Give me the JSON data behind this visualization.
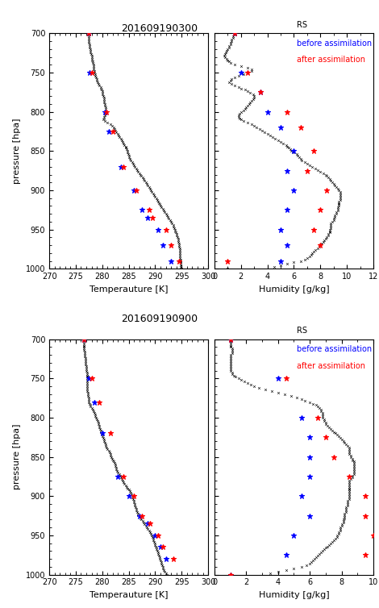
{
  "title1": "201609190300",
  "title2": "201609190900",
  "legend_rs": "RS",
  "legend_before": "before assimilation",
  "legend_after": "after assimilation",
  "ylabel": "pressure [hpa]",
  "xlabel_temp": "Temperauture [K]",
  "xlabel_hum": "Humidity [g/kg]",
  "temp_xlim": [
    270,
    300
  ],
  "hum_xlim1": [
    0,
    12
  ],
  "hum_xlim2": [
    0,
    10
  ],
  "temp_xticks": [
    270,
    275,
    280,
    285,
    290,
    295,
    300
  ],
  "hum_xticks1": [
    0,
    2,
    4,
    6,
    8,
    10,
    12
  ],
  "hum_xticks2": [
    0,
    2,
    4,
    6,
    8,
    10
  ],
  "pressure_yticks": [
    700,
    750,
    800,
    850,
    900,
    950,
    1000
  ],
  "rs_temp1_p": [
    700,
    702,
    704,
    706,
    708,
    710,
    712,
    714,
    716,
    718,
    720,
    722,
    724,
    726,
    728,
    730,
    732,
    734,
    736,
    738,
    740,
    742,
    744,
    746,
    748,
    750,
    752,
    754,
    756,
    758,
    760,
    762,
    764,
    766,
    768,
    770,
    772,
    774,
    776,
    778,
    780,
    782,
    784,
    786,
    788,
    790,
    792,
    794,
    796,
    798,
    800,
    802,
    804,
    806,
    808,
    810,
    812,
    814,
    816,
    818,
    820,
    822,
    824,
    826,
    828,
    830,
    832,
    834,
    836,
    838,
    840,
    842,
    844,
    846,
    848,
    850,
    852,
    854,
    856,
    858,
    860,
    862,
    864,
    866,
    868,
    870,
    872,
    874,
    876,
    878,
    880,
    882,
    884,
    886,
    888,
    890,
    892,
    894,
    896,
    898,
    900,
    902,
    904,
    906,
    908,
    910,
    912,
    914,
    916,
    918,
    920,
    922,
    924,
    926,
    928,
    930,
    932,
    934,
    936,
    938,
    940,
    942,
    944,
    946,
    948,
    950,
    952,
    954,
    956,
    958,
    960,
    962,
    964,
    966,
    968,
    970,
    972,
    974,
    976,
    978,
    980,
    982,
    984,
    986,
    988,
    990,
    992,
    994,
    996,
    998,
    1000
  ],
  "rs_temp1_t": [
    277.5,
    277.5,
    277.5,
    277.5,
    277.5,
    277.5,
    277.5,
    277.6,
    277.6,
    277.6,
    277.7,
    277.7,
    277.8,
    277.9,
    278.0,
    278.0,
    278.1,
    278.1,
    278.2,
    278.2,
    278.3,
    278.3,
    278.3,
    278.4,
    278.5,
    278.5,
    278.6,
    278.7,
    278.8,
    278.9,
    279.0,
    279.1,
    279.3,
    279.5,
    279.7,
    279.8,
    279.9,
    280.0,
    280.0,
    280.1,
    280.2,
    280.3,
    280.3,
    280.4,
    280.4,
    280.5,
    280.5,
    280.6,
    280.7,
    280.7,
    280.7,
    280.6,
    280.5,
    280.4,
    280.3,
    280.2,
    280.5,
    281.0,
    281.5,
    281.8,
    282.1,
    282.3,
    282.5,
    282.7,
    282.9,
    283.1,
    283.3,
    283.5,
    283.7,
    283.9,
    284.0,
    284.2,
    284.4,
    284.5,
    284.6,
    284.7,
    284.8,
    284.9,
    285.0,
    285.1,
    285.2,
    285.4,
    285.6,
    285.8,
    286.0,
    286.2,
    286.4,
    286.6,
    286.8,
    287.0,
    287.2,
    287.4,
    287.6,
    287.8,
    288.0,
    288.2,
    288.4,
    288.6,
    288.8,
    289.0,
    289.2,
    289.4,
    289.6,
    289.8,
    290.0,
    290.2,
    290.4,
    290.5,
    290.7,
    290.8,
    291.0,
    291.2,
    291.4,
    291.6,
    291.8,
    292.0,
    292.2,
    292.4,
    292.6,
    292.8,
    293.0,
    293.2,
    293.4,
    293.5,
    293.6,
    293.7,
    293.8,
    293.9,
    294.0,
    294.1,
    294.2,
    294.3,
    294.4,
    294.4,
    294.5,
    294.5,
    294.5,
    294.6,
    294.6,
    294.6,
    294.7,
    294.7,
    294.7,
    294.7,
    294.8,
    294.8,
    294.8,
    294.8,
    294.8,
    294.8,
    295.0
  ],
  "rs_hum1_p": [
    700,
    702,
    704,
    706,
    708,
    710,
    712,
    714,
    716,
    718,
    720,
    722,
    724,
    726,
    728,
    730,
    732,
    734,
    736,
    738,
    740,
    742,
    744,
    746,
    748,
    750,
    752,
    754,
    756,
    758,
    760,
    762,
    764,
    766,
    768,
    770,
    772,
    774,
    776,
    778,
    780,
    782,
    784,
    786,
    788,
    790,
    792,
    794,
    796,
    798,
    800,
    802,
    804,
    806,
    808,
    810,
    812,
    814,
    816,
    818,
    820,
    822,
    824,
    826,
    828,
    830,
    832,
    834,
    836,
    838,
    840,
    842,
    844,
    846,
    848,
    850,
    852,
    854,
    856,
    858,
    860,
    862,
    864,
    866,
    868,
    870,
    872,
    874,
    876,
    878,
    880,
    882,
    884,
    886,
    888,
    890,
    892,
    894,
    896,
    898,
    900,
    902,
    904,
    906,
    908,
    910,
    912,
    914,
    916,
    918,
    920,
    922,
    924,
    926,
    928,
    930,
    932,
    934,
    936,
    938,
    940,
    942,
    944,
    946,
    948,
    950,
    952,
    954,
    956,
    958,
    960,
    962,
    964,
    966,
    968,
    970,
    972,
    974,
    976,
    978,
    980,
    982,
    984,
    986,
    988,
    990,
    992,
    994,
    996,
    998,
    1000
  ],
  "rs_hum1_h": [
    1.5,
    1.5,
    1.4,
    1.4,
    1.3,
    1.3,
    1.2,
    1.2,
    1.1,
    1.1,
    1.0,
    0.9,
    0.85,
    0.8,
    0.75,
    0.8,
    0.9,
    1.0,
    1.1,
    1.2,
    1.5,
    2.0,
    2.5,
    2.8,
    2.8,
    2.5,
    2.2,
    1.8,
    1.5,
    1.3,
    1.2,
    1.1,
    1.3,
    1.5,
    1.8,
    2.0,
    2.3,
    2.5,
    2.7,
    2.9,
    3.0,
    3.0,
    2.9,
    2.8,
    2.7,
    2.6,
    2.5,
    2.4,
    2.3,
    2.2,
    2.0,
    1.9,
    1.8,
    1.8,
    1.9,
    2.0,
    2.2,
    2.5,
    2.8,
    3.0,
    3.2,
    3.4,
    3.6,
    3.8,
    4.0,
    4.2,
    4.4,
    4.6,
    4.8,
    5.0,
    5.2,
    5.4,
    5.5,
    5.6,
    5.7,
    5.8,
    6.0,
    6.2,
    6.3,
    6.4,
    6.5,
    6.6,
    6.8,
    7.0,
    7.2,
    7.4,
    7.6,
    7.8,
    8.0,
    8.2,
    8.4,
    8.5,
    8.6,
    8.7,
    8.8,
    8.9,
    9.0,
    9.1,
    9.2,
    9.3,
    9.4,
    9.5,
    9.5,
    9.5,
    9.5,
    9.5,
    9.5,
    9.4,
    9.4,
    9.4,
    9.4,
    9.3,
    9.3,
    9.3,
    9.2,
    9.2,
    9.1,
    9.1,
    9.0,
    9.0,
    8.9,
    8.8,
    8.8,
    8.8,
    8.8,
    8.7,
    8.7,
    8.7,
    8.6,
    8.6,
    8.5,
    8.4,
    8.3,
    8.2,
    8.1,
    8.0,
    7.9,
    7.8,
    7.6,
    7.5,
    7.4,
    7.3,
    7.2,
    7.0,
    6.8,
    6.5,
    6.0,
    5.5,
    5.0,
    4.5,
    1.0
  ],
  "before_temp1": [
    277.5,
    277.6,
    280.5,
    281.2,
    283.5,
    286.0,
    287.5,
    288.5,
    290.5,
    291.5,
    293.0
  ],
  "before_temp1_p": [
    700,
    750,
    800,
    825,
    870,
    900,
    925,
    935,
    950,
    970,
    990
  ],
  "after_temp1": [
    277.5,
    278.0,
    280.8,
    282.0,
    284.0,
    286.5,
    288.8,
    289.5,
    292.0,
    293.0,
    294.5
  ],
  "after_temp1_p": [
    700,
    750,
    800,
    825,
    870,
    900,
    925,
    935,
    950,
    970,
    990
  ],
  "before_hum1": [
    1.5,
    2.0,
    3.5,
    4.0,
    5.0,
    6.0,
    5.5,
    6.0,
    5.5,
    5.0,
    5.5,
    5.0
  ],
  "before_hum1_p": [
    700,
    750,
    775,
    800,
    820,
    850,
    875,
    900,
    925,
    950,
    970,
    990
  ],
  "after_hum1": [
    1.5,
    2.5,
    3.5,
    5.5,
    6.5,
    7.5,
    7.0,
    8.5,
    8.0,
    7.5,
    8.0,
    1.0
  ],
  "after_hum1_p": [
    700,
    750,
    775,
    800,
    820,
    850,
    875,
    900,
    925,
    950,
    970,
    990
  ],
  "rs_temp2_p": [
    700,
    702,
    704,
    706,
    708,
    710,
    712,
    714,
    716,
    718,
    720,
    722,
    724,
    726,
    728,
    730,
    732,
    734,
    736,
    738,
    740,
    742,
    744,
    746,
    748,
    750,
    752,
    754,
    756,
    758,
    760,
    762,
    764,
    766,
    768,
    770,
    772,
    774,
    776,
    778,
    780,
    782,
    784,
    786,
    788,
    790,
    792,
    794,
    796,
    798,
    800,
    802,
    804,
    806,
    808,
    810,
    812,
    814,
    816,
    818,
    820,
    822,
    824,
    826,
    828,
    830,
    832,
    834,
    836,
    838,
    840,
    842,
    844,
    846,
    848,
    850,
    852,
    854,
    856,
    858,
    860,
    862,
    864,
    866,
    868,
    870,
    872,
    874,
    876,
    878,
    880,
    882,
    884,
    886,
    888,
    890,
    892,
    894,
    896,
    898,
    900,
    902,
    904,
    906,
    908,
    910,
    912,
    914,
    916,
    918,
    920,
    922,
    924,
    926,
    928,
    930,
    932,
    934,
    936,
    938,
    940,
    942,
    944,
    946,
    948,
    950,
    952,
    954,
    956,
    958,
    960,
    962,
    964,
    966,
    968,
    970,
    972,
    974,
    976,
    978,
    980,
    982,
    984,
    986,
    988,
    990,
    992,
    994,
    996,
    998,
    1000
  ],
  "rs_temp2_t": [
    276.5,
    276.5,
    276.5,
    276.5,
    276.5,
    276.6,
    276.6,
    276.6,
    276.7,
    276.7,
    276.7,
    276.7,
    276.8,
    276.8,
    276.8,
    276.9,
    276.9,
    277.0,
    277.0,
    277.0,
    277.0,
    277.1,
    277.1,
    277.1,
    277.1,
    277.1,
    277.1,
    277.2,
    277.2,
    277.2,
    277.2,
    277.2,
    277.2,
    277.2,
    277.3,
    277.3,
    277.3,
    277.4,
    277.4,
    277.5,
    277.5,
    277.6,
    277.7,
    277.8,
    278.0,
    278.2,
    278.4,
    278.5,
    278.6,
    278.7,
    278.8,
    279.0,
    279.1,
    279.2,
    279.3,
    279.4,
    279.5,
    279.6,
    279.7,
    279.8,
    279.9,
    280.0,
    280.1,
    280.2,
    280.3,
    280.4,
    280.5,
    280.6,
    280.7,
    280.8,
    281.0,
    281.2,
    281.4,
    281.5,
    281.6,
    281.7,
    281.8,
    282.0,
    282.2,
    282.3,
    282.4,
    282.5,
    282.6,
    282.7,
    282.8,
    283.0,
    283.2,
    283.4,
    283.5,
    283.7,
    283.9,
    284.0,
    284.2,
    284.4,
    284.6,
    284.8,
    285.0,
    285.2,
    285.4,
    285.5,
    285.6,
    285.7,
    285.8,
    285.9,
    286.0,
    286.1,
    286.2,
    286.3,
    286.4,
    286.5,
    286.6,
    286.7,
    286.8,
    287.0,
    287.2,
    287.4,
    287.6,
    287.8,
    288.0,
    288.2,
    288.4,
    288.6,
    288.8,
    289.0,
    289.2,
    289.4,
    289.5,
    289.6,
    289.7,
    289.8,
    289.9,
    290.0,
    290.1,
    290.2,
    290.3,
    290.4,
    290.5,
    290.6,
    290.7,
    290.8,
    290.9,
    291.0,
    291.1,
    291.2,
    291.3,
    291.4,
    291.5,
    291.6,
    291.8,
    292.0,
    292.2
  ],
  "rs_hum2_p": [
    700,
    702,
    704,
    706,
    708,
    710,
    712,
    714,
    716,
    718,
    720,
    722,
    724,
    726,
    728,
    730,
    732,
    734,
    736,
    738,
    740,
    742,
    744,
    746,
    748,
    750,
    752,
    754,
    756,
    758,
    760,
    762,
    764,
    766,
    768,
    770,
    772,
    774,
    776,
    778,
    780,
    782,
    784,
    786,
    788,
    790,
    792,
    794,
    796,
    798,
    800,
    802,
    804,
    806,
    808,
    810,
    812,
    814,
    816,
    818,
    820,
    822,
    824,
    826,
    828,
    830,
    832,
    834,
    836,
    838,
    840,
    842,
    844,
    846,
    848,
    850,
    852,
    854,
    856,
    858,
    860,
    862,
    864,
    866,
    868,
    870,
    872,
    874,
    876,
    878,
    880,
    882,
    884,
    886,
    888,
    890,
    892,
    894,
    896,
    898,
    900,
    902,
    904,
    906,
    908,
    910,
    912,
    914,
    916,
    918,
    920,
    922,
    924,
    926,
    928,
    930,
    932,
    934,
    936,
    938,
    940,
    942,
    944,
    946,
    948,
    950,
    952,
    954,
    956,
    958,
    960,
    962,
    964,
    966,
    968,
    970,
    972,
    974,
    976,
    978,
    980,
    982,
    984,
    986,
    988,
    990,
    992,
    994,
    996,
    998,
    1000
  ],
  "rs_hum2_h": [
    1.0,
    1.0,
    1.0,
    1.0,
    1.0,
    1.0,
    1.1,
    1.1,
    1.1,
    1.1,
    1.0,
    1.0,
    1.0,
    1.0,
    1.0,
    1.0,
    1.0,
    1.0,
    1.0,
    1.0,
    1.0,
    1.1,
    1.1,
    1.2,
    1.3,
    1.5,
    1.7,
    1.9,
    2.1,
    2.3,
    2.5,
    2.8,
    3.2,
    3.6,
    4.0,
    4.4,
    4.8,
    5.2,
    5.5,
    5.7,
    6.0,
    6.2,
    6.4,
    6.5,
    6.6,
    6.7,
    6.7,
    6.8,
    6.8,
    6.8,
    6.8,
    6.9,
    6.9,
    7.0,
    7.0,
    7.1,
    7.2,
    7.3,
    7.4,
    7.5,
    7.6,
    7.7,
    7.8,
    7.9,
    8.0,
    8.1,
    8.2,
    8.3,
    8.4,
    8.5,
    8.5,
    8.5,
    8.5,
    8.5,
    8.6,
    8.6,
    8.7,
    8.7,
    8.8,
    8.8,
    8.8,
    8.8,
    8.8,
    8.8,
    8.8,
    8.8,
    8.8,
    8.7,
    8.7,
    8.6,
    8.5,
    8.5,
    8.5,
    8.5,
    8.5,
    8.5,
    8.5,
    8.5,
    8.5,
    8.5,
    8.5,
    8.5,
    8.5,
    8.4,
    8.4,
    8.4,
    8.4,
    8.3,
    8.3,
    8.3,
    8.3,
    8.2,
    8.2,
    8.2,
    8.2,
    8.1,
    8.1,
    8.1,
    8.0,
    8.0,
    7.9,
    7.9,
    7.9,
    7.8,
    7.8,
    7.7,
    7.7,
    7.6,
    7.5,
    7.4,
    7.3,
    7.2,
    7.1,
    7.0,
    6.9,
    6.8,
    6.7,
    6.6,
    6.5,
    6.4,
    6.3,
    6.2,
    6.1,
    6.0,
    5.8,
    5.5,
    5.0,
    4.5,
    4.0,
    3.5,
    1.0
  ],
  "before_temp2": [
    276.5,
    277.5,
    278.5,
    280.0,
    283.0,
    285.0,
    287.0,
    288.5,
    290.0,
    291.0,
    292.0
  ],
  "before_temp2_p": [
    700,
    750,
    780,
    820,
    875,
    900,
    925,
    935,
    950,
    965,
    980
  ],
  "after_temp2": [
    276.5,
    278.0,
    279.5,
    281.5,
    284.0,
    286.0,
    287.5,
    289.0,
    290.5,
    291.5,
    293.5
  ],
  "after_temp2_p": [
    700,
    750,
    780,
    820,
    875,
    900,
    925,
    935,
    950,
    965,
    980
  ],
  "before_hum2": [
    1.0,
    4.0,
    5.5,
    6.0,
    6.0,
    6.0,
    5.5,
    6.0,
    5.0,
    4.5,
    1.0
  ],
  "before_hum2_p": [
    700,
    750,
    800,
    825,
    850,
    875,
    900,
    925,
    950,
    975,
    1000
  ],
  "after_hum2": [
    1.0,
    4.5,
    6.5,
    7.0,
    7.5,
    8.5,
    9.5,
    9.5,
    10.0,
    9.5,
    1.0
  ],
  "after_hum2_p": [
    700,
    750,
    800,
    825,
    850,
    875,
    900,
    925,
    950,
    975,
    1000
  ],
  "color_rs": "#000000",
  "color_before": "#0000ff",
  "color_after": "#ff0000",
  "marker_size": 5,
  "rs_marker_size": 2,
  "background": "#ffffff"
}
